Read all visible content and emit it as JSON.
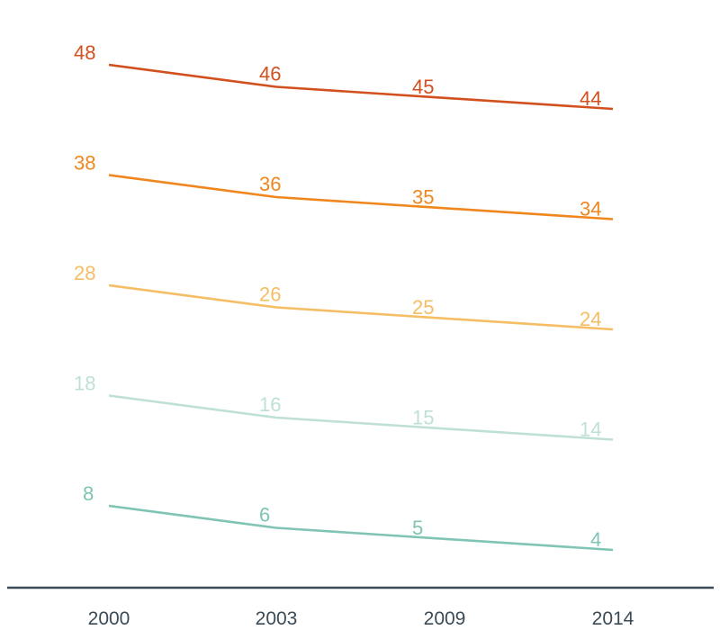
{
  "chart_data": {
    "type": "line",
    "title": "",
    "xlabel": "",
    "ylabel": "",
    "x": [
      "2000",
      "2003",
      "2009",
      "2014"
    ],
    "ylim": [
      0,
      52
    ],
    "grid": false,
    "legend": "none",
    "series": [
      {
        "color": "#d2501e",
        "values": [
          48,
          46,
          45,
          44
        ]
      },
      {
        "color": "#f0861e",
        "values": [
          38,
          36,
          35,
          34
        ]
      },
      {
        "color": "#f5bd64",
        "values": [
          28,
          26,
          25,
          24
        ]
      },
      {
        "color": "#bfe0d4",
        "values": [
          18,
          16,
          15,
          14
        ]
      },
      {
        "color": "#7fc4b4",
        "values": [
          8,
          6,
          5,
          4
        ]
      }
    ],
    "axis_color": "#3a4a56"
  }
}
